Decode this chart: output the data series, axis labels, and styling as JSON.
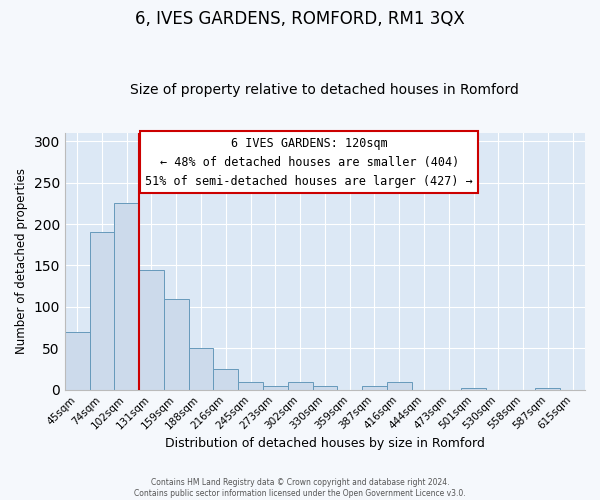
{
  "title": "6, IVES GARDENS, ROMFORD, RM1 3QX",
  "subtitle": "Size of property relative to detached houses in Romford",
  "xlabel": "Distribution of detached houses by size in Romford",
  "ylabel": "Number of detached properties",
  "bar_labels": [
    "45sqm",
    "74sqm",
    "102sqm",
    "131sqm",
    "159sqm",
    "188sqm",
    "216sqm",
    "245sqm",
    "273sqm",
    "302sqm",
    "330sqm",
    "359sqm",
    "387sqm",
    "416sqm",
    "444sqm",
    "473sqm",
    "501sqm",
    "530sqm",
    "558sqm",
    "587sqm",
    "615sqm"
  ],
  "bar_values": [
    70,
    190,
    225,
    145,
    110,
    50,
    25,
    9,
    4,
    9,
    4,
    0,
    4,
    9,
    0,
    0,
    2,
    0,
    0,
    2,
    0
  ],
  "bar_color": "#ccdaeb",
  "bar_edge_color": "#6699bb",
  "vline_color": "#cc0000",
  "ylim": [
    0,
    310
  ],
  "yticks": [
    0,
    50,
    100,
    150,
    200,
    250,
    300
  ],
  "annotation_title": "6 IVES GARDENS: 120sqm",
  "annotation_line1": "← 48% of detached houses are smaller (404)",
  "annotation_line2": "51% of semi-detached houses are larger (427) →",
  "annotation_box_color": "#ffffff",
  "annotation_box_edge_color": "#cc0000",
  "footer_line1": "Contains HM Land Registry data © Crown copyright and database right 2024.",
  "footer_line2": "Contains public sector information licensed under the Open Government Licence v3.0.",
  "plot_bg_color": "#dce8f5",
  "fig_bg_color": "#f5f8fc",
  "grid_color": "#ffffff",
  "title_fontsize": 12,
  "subtitle_fontsize": 10,
  "figsize": [
    6.0,
    5.0
  ],
  "dpi": 100
}
